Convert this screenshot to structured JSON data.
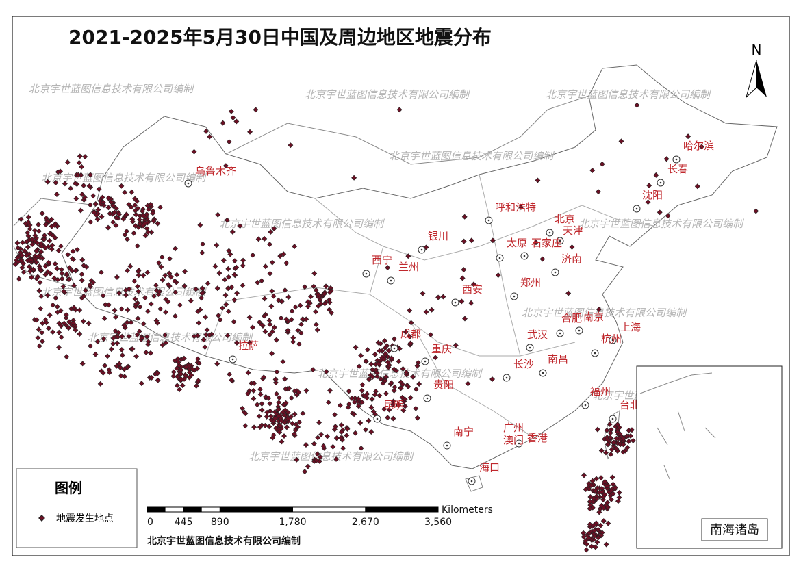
{
  "title": "2021-2025年5月30日中国及周边地区地震分布",
  "north": "N",
  "watermark": "北京宇世蓝图信息技术有限公司编制",
  "credit": "北京宇世蓝图信息技术有限公司编制",
  "legend": {
    "title": "图例",
    "item": "地震发生地点"
  },
  "inset_label": "南海诸岛",
  "scale_bar": {
    "unit": "Kilometers",
    "ticks": [
      0,
      445,
      890,
      {
        "value": 1780,
        "label": "1,780"
      },
      {
        "value": 2670,
        "label": "2,670"
      },
      {
        "value": 3560,
        "label": "3,560"
      }
    ]
  },
  "cities": [
    "乌鲁木齐",
    "哈尔滨",
    "长春",
    "沈阳",
    "呼和浩特",
    "北京",
    "天津",
    "银川",
    "太原",
    "石家庄",
    "济南",
    "西宁",
    "兰州",
    "郑州",
    "西安",
    "合肥",
    "南京",
    "上海",
    "杭州",
    "武汉",
    "成都",
    "重庆",
    "拉萨",
    "长沙",
    "南昌",
    "贵阳",
    "福州",
    "昆明",
    "台北",
    "南宁",
    "广州",
    "澳门",
    "香港",
    "海口"
  ]
}
